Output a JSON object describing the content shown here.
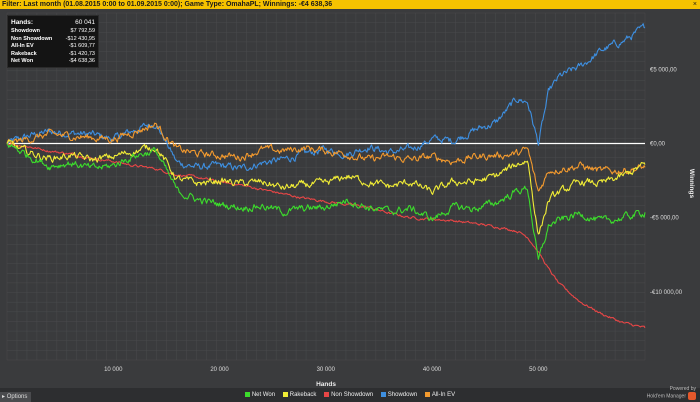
{
  "filter": {
    "prefix": "Filter:",
    "text": "Last month (01.08.2015 0:00 to 01.09.2015 0:00); Game Type: OmahaPL; Winnings: -€4 638,36",
    "close_label": "×"
  },
  "stats": [
    {
      "label": "Hands:",
      "value": "60 041"
    },
    {
      "label": "Showdown",
      "value": "$7 792,59"
    },
    {
      "label": "Non Showdown",
      "value": "-$12 430,95"
    },
    {
      "label": "All-In EV",
      "value": "-$1 609,77"
    },
    {
      "label": "Rakeback",
      "value": "-$1 420,73"
    },
    {
      "label": "Net Won",
      "value": "-$4 638,36"
    }
  ],
  "options_label": "Options",
  "brand": {
    "line1": "Powered by",
    "line2": "Hold'em Manager"
  },
  "colors": {
    "net_won": "#3cdc2c",
    "rakeback": "#f0ec36",
    "non_showdown": "#e84646",
    "showdown": "#3e8fe0",
    "all_in_ev": "#f39a2e",
    "zero_line": "#ffffff"
  },
  "chart_data": {
    "type": "line",
    "xlabel": "Hands",
    "ylabel": "Winnings",
    "x_ticks": [
      10000,
      20000,
      30000,
      40000,
      50000
    ],
    "x_tick_labels": [
      "10 000",
      "20 000",
      "30 000",
      "40 000",
      "50 000"
    ],
    "y_ticks": [
      5000,
      0,
      -5000,
      -10000
    ],
    "y_tick_labels": [
      "€5 000,00",
      "€0,00",
      "-€5 000,00",
      "-€10 000,00"
    ],
    "xlim": [
      0,
      60041
    ],
    "ylim": [
      -14600,
      8800
    ],
    "legend_position": "bottom",
    "x": [
      0,
      2000,
      4000,
      6000,
      8000,
      10000,
      12000,
      14000,
      16000,
      18000,
      20000,
      22000,
      24000,
      26000,
      28000,
      30000,
      32000,
      34000,
      36000,
      38000,
      40000,
      42000,
      44000,
      46000,
      48000,
      49000,
      50000,
      51000,
      52000,
      54000,
      56000,
      58000,
      60041
    ],
    "series": [
      {
        "name": "Net Won",
        "color_key": "net_won",
        "values": [
          0,
          -800,
          -1500,
          -1300,
          -1700,
          -1500,
          -800,
          -500,
          -3200,
          -3800,
          -4100,
          -4300,
          -4200,
          -4600,
          -4400,
          -4300,
          -3800,
          -4300,
          -4600,
          -4400,
          -5100,
          -4300,
          -4400,
          -4000,
          -3200,
          -3000,
          -8000,
          -5500,
          -5200,
          -4700,
          -5300,
          -5000,
          -4638
        ]
      },
      {
        "name": "Rakeback",
        "color_key": "rakeback",
        "values": [
          0,
          -600,
          -1000,
          -800,
          -1100,
          -900,
          -500,
          -200,
          -2400,
          -2700,
          -2500,
          -2700,
          -2600,
          -3000,
          -2800,
          -2700,
          -2200,
          -2600,
          -2900,
          -2600,
          -3300,
          -2600,
          -2600,
          -2200,
          -1400,
          -1100,
          -6200,
          -3800,
          -3300,
          -2600,
          -2700,
          -2200,
          -1421
        ]
      },
      {
        "name": "Non Showdown",
        "color_key": "non_showdown",
        "values": [
          0,
          -200,
          -500,
          -700,
          -1000,
          -1200,
          -1500,
          -1700,
          -2100,
          -2300,
          -2600,
          -2800,
          -3100,
          -3400,
          -3700,
          -3900,
          -4100,
          -4300,
          -4700,
          -5000,
          -5100,
          -5200,
          -5400,
          -5600,
          -5900,
          -6300,
          -7300,
          -8500,
          -9500,
          -10700,
          -11500,
          -12100,
          -12431
        ]
      },
      {
        "name": "Showdown",
        "color_key": "showdown",
        "values": [
          0,
          500,
          800,
          700,
          600,
          300,
          900,
          1400,
          -1300,
          -1600,
          -1500,
          -1700,
          -1300,
          -1100,
          -700,
          -400,
          -700,
          -200,
          -600,
          -400,
          300,
          200,
          900,
          1400,
          3000,
          2800,
          0,
          3500,
          4500,
          5200,
          6300,
          6900,
          7793
        ]
      },
      {
        "name": "All-In EV",
        "color_key": "all_in_ev",
        "values": [
          0,
          300,
          600,
          500,
          400,
          300,
          800,
          1300,
          -400,
          -700,
          -800,
          -900,
          -400,
          -500,
          -300,
          -500,
          -700,
          -1100,
          -900,
          -1100,
          -900,
          -1200,
          -900,
          -800,
          -700,
          -400,
          -3300,
          -1800,
          -1700,
          -1500,
          -1900,
          -1800,
          -1610
        ]
      }
    ]
  }
}
